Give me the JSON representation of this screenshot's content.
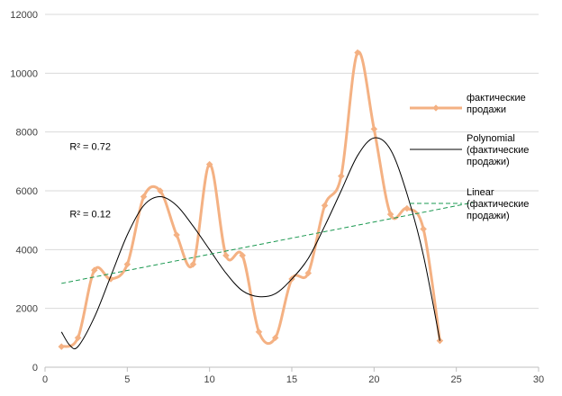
{
  "chart_data": {
    "type": "line",
    "title": "",
    "xlabel": "",
    "ylabel": "",
    "xlim": [
      0,
      30
    ],
    "ylim": [
      0,
      12000
    ],
    "x_ticks": [
      0,
      5,
      10,
      15,
      20,
      25,
      30
    ],
    "y_ticks": [
      0,
      2000,
      4000,
      6000,
      8000,
      10000,
      12000
    ],
    "grid": "horizontal",
    "legend_position": "right",
    "series": [
      {
        "name": "фактические продажи",
        "kind": "smooth-line-markers",
        "color": "#f4b183",
        "points": [
          [
            1,
            700
          ],
          [
            2,
            1000
          ],
          [
            3,
            3300
          ],
          [
            4,
            3000
          ],
          [
            5,
            3500
          ],
          [
            6,
            5800
          ],
          [
            7,
            6000
          ],
          [
            8,
            4500
          ],
          [
            9,
            3500
          ],
          [
            10,
            6900
          ],
          [
            11,
            3800
          ],
          [
            12,
            3800
          ],
          [
            13,
            1200
          ],
          [
            14,
            1000
          ],
          [
            15,
            3000
          ],
          [
            16,
            3200
          ],
          [
            17,
            5500
          ],
          [
            18,
            6500
          ],
          [
            19,
            10700
          ],
          [
            20,
            8100
          ],
          [
            21,
            5200
          ],
          [
            22,
            5400
          ],
          [
            23,
            4700
          ],
          [
            24,
            900
          ]
        ]
      },
      {
        "name": "Polynomial (фактические продажи)",
        "kind": "trend-poly",
        "color": "#000000",
        "points": [
          [
            1,
            1200
          ],
          [
            1.5,
            750
          ],
          [
            2,
            700
          ],
          [
            3,
            1700
          ],
          [
            4,
            3100
          ],
          [
            5,
            4500
          ],
          [
            6,
            5500
          ],
          [
            7,
            5800
          ],
          [
            8,
            5500
          ],
          [
            9,
            4800
          ],
          [
            10,
            4000
          ],
          [
            11,
            3200
          ],
          [
            12,
            2600
          ],
          [
            13,
            2400
          ],
          [
            14,
            2500
          ],
          [
            15,
            3000
          ],
          [
            16,
            3700
          ],
          [
            17,
            4800
          ],
          [
            18,
            6000
          ],
          [
            19,
            7200
          ],
          [
            20,
            7800
          ],
          [
            21,
            7400
          ],
          [
            22,
            5900
          ],
          [
            23,
            3800
          ],
          [
            24,
            900
          ]
        ]
      },
      {
        "name": "Linear (фактические продажи)",
        "kind": "trend-linear",
        "color": "#1a9850",
        "points": [
          [
            1,
            2850
          ],
          [
            26,
            5600
          ]
        ]
      }
    ],
    "annotations": [
      {
        "text": "R² = 0.72",
        "x": 1.5,
        "y": 7400
      },
      {
        "text": "R² = 0.12",
        "x": 1.5,
        "y": 5100
      }
    ],
    "legend": [
      {
        "series": 0,
        "label_lines": [
          "фактические",
          "продажи"
        ]
      },
      {
        "series": 1,
        "label_lines": [
          "Polynomial",
          "(фактические",
          "продажи)"
        ]
      },
      {
        "series": 2,
        "label_lines": [
          "Linear",
          "(фактические",
          "продажи)"
        ]
      }
    ]
  }
}
